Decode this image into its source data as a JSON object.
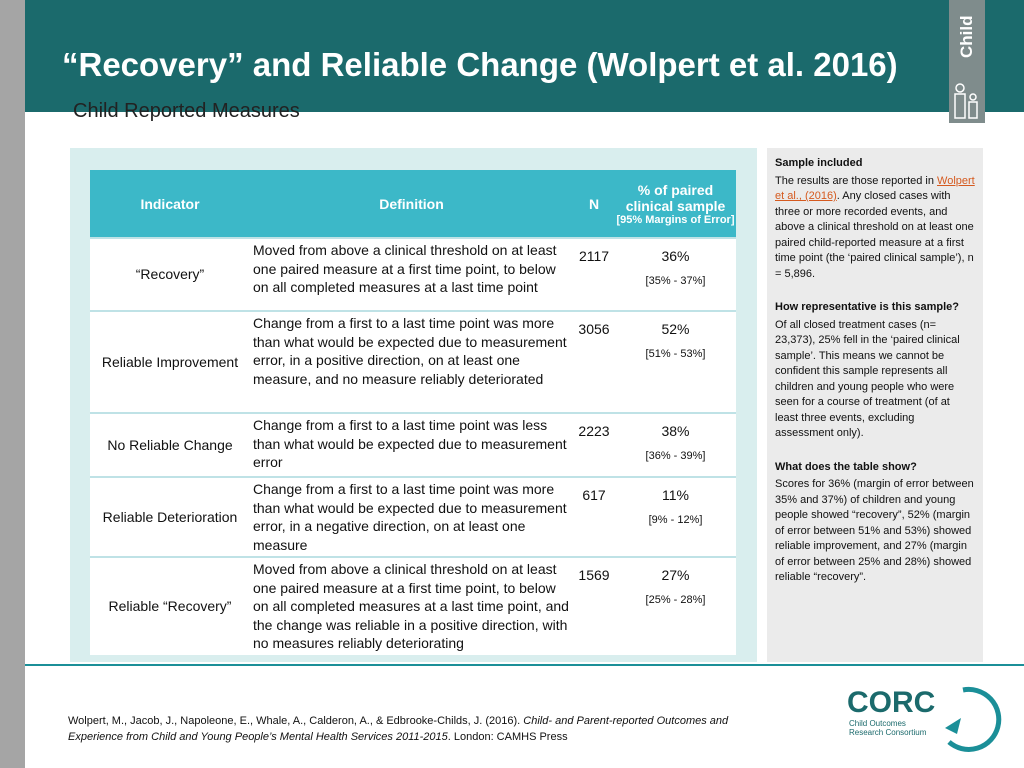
{
  "header": {
    "title": "“Recovery” and Reliable Change (Wolpert et al. 2016)",
    "subtitle": "Child Reported Measures",
    "tab": "Child"
  },
  "table": {
    "columns": [
      "Indicator",
      "Definition",
      "N",
      "% of paired clinical sample",
      "[95% Margins of Error]"
    ],
    "rows": [
      [
        "“Recovery”",
        "Moved from above a clinical threshold on at least one paired measure at a first time point, to below on all completed measures at a last time point",
        2117,
        "36%",
        "[35% - 37%]"
      ],
      [
        "Reliable Improvement",
        "Change from a first to a last time point was more than what would be expected due to measurement error, in a positive direction, on at least one measure, and no measure reliably deteriorated",
        3056,
        "52%",
        "[51% - 53%]"
      ],
      [
        "No Reliable Change",
        "Change from a first to a last time point was less than what would be expected due to measurement error",
        2223,
        "38%",
        "[36% - 39%]"
      ],
      [
        "Reliable Deterioration",
        "Change from a first to a last time point was more than what would be expected due to measurement error, in a negative direction, on at least one measure",
        617,
        "11%",
        "[9% - 12%]"
      ],
      [
        "Reliable “Recovery”",
        "Moved from above a clinical threshold on at least one paired measure at a first time point, to below on all completed measures at a last time point, and the change was reliable in a positive direction, with no measures reliably deteriorating",
        1569,
        "27%",
        "[25% - 28%]"
      ]
    ]
  },
  "sidebar": [
    {
      "heading": "Sample included",
      "parts": [
        "The results are those reported in ",
        "Wolpert et al., (2016)",
        ". Any closed cases with three or more recorded events, and above a clinical threshold on at least one paired child-reported measure at a first time point (the ‘paired clinical sample’), n = 5,896."
      ]
    },
    {
      "heading": "How representative is this sample?",
      "parts": [
        "Of all closed treatment cases (n= 23,373), 25% fell in the ‘paired clinical sample’. This means we cannot be confident this sample represents all children and young people who were seen for a course of treatment (of at least three events, excluding assessment only)."
      ]
    },
    {
      "heading": "What does the table show?",
      "parts": [
        "Scores for 36% (margin of error between 35% and 37%) of children and young people showed “recovery”, 52% (margin of error between 51% and 53%) showed reliable improvement, and 27% (margin of error between 25% and 28%) showed reliable “recovery”."
      ]
    }
  ],
  "citation": [
    "Wolpert, M., Jacob, J., Napoleone, E., Whale, A., Calderon, A., & Edbrooke-Childs, J. (2016). ",
    "Child- and Parent-reported Outcomes and Experience from Child and Young People’s Mental Health Services 2011-2015",
    ". London: CAMHS Press"
  ],
  "logo": {
    "name": "CORC",
    "line1": "Child Outcomes",
    "line2": "Research Consortium"
  }
}
